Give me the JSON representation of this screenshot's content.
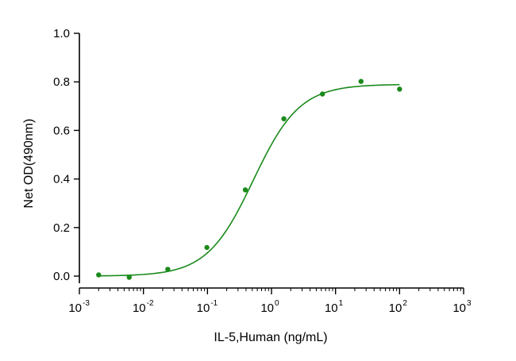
{
  "chart_data": {
    "type": "scatter",
    "title": "",
    "xlabel": "IL-5,Human (ng/mL)",
    "ylabel": "Net OD(490nm)",
    "xscale": "log",
    "xlim": [
      0.001,
      1000
    ],
    "ylim": [
      0.0,
      1.0
    ],
    "x_ticks": [
      {
        "base": "10",
        "exp": "-3",
        "value": 0.001
      },
      {
        "base": "10",
        "exp": "-2",
        "value": 0.01
      },
      {
        "base": "10",
        "exp": "-1",
        "value": 0.1
      },
      {
        "base": "10",
        "exp": "0",
        "value": 1
      },
      {
        "base": "10",
        "exp": "1",
        "value": 10
      },
      {
        "base": "10",
        "exp": "2",
        "value": 100
      },
      {
        "base": "10",
        "exp": "3",
        "value": 1000
      }
    ],
    "y_ticks": [
      {
        "label": "0.0",
        "value": 0.0
      },
      {
        "label": "0.2",
        "value": 0.2
      },
      {
        "label": "0.4",
        "value": 0.4
      },
      {
        "label": "0.6",
        "value": 0.6
      },
      {
        "label": "0.8",
        "value": 0.8
      },
      {
        "label": "1.0",
        "value": 1.0
      }
    ],
    "grid": false,
    "legend": "none",
    "color": "#1a8a1a",
    "series": [
      {
        "points": [
          {
            "x": 0.002,
            "y": 0.005
          },
          {
            "x": 0.006,
            "y": -0.005
          },
          {
            "x": 0.024,
            "y": 0.028
          },
          {
            "x": 0.098,
            "y": 0.118
          },
          {
            "x": 0.39,
            "y": 0.355
          },
          {
            "x": 1.56,
            "y": 0.648
          },
          {
            "x": 6.25,
            "y": 0.75
          },
          {
            "x": 25,
            "y": 0.802
          },
          {
            "x": 100,
            "y": 0.77
          }
        ],
        "fit": {
          "model": "4PL",
          "bottom": 0.0,
          "top": 0.79,
          "ec50": 0.52,
          "hill": 1.2,
          "x_range": [
            0.002,
            100
          ]
        }
      }
    ]
  }
}
